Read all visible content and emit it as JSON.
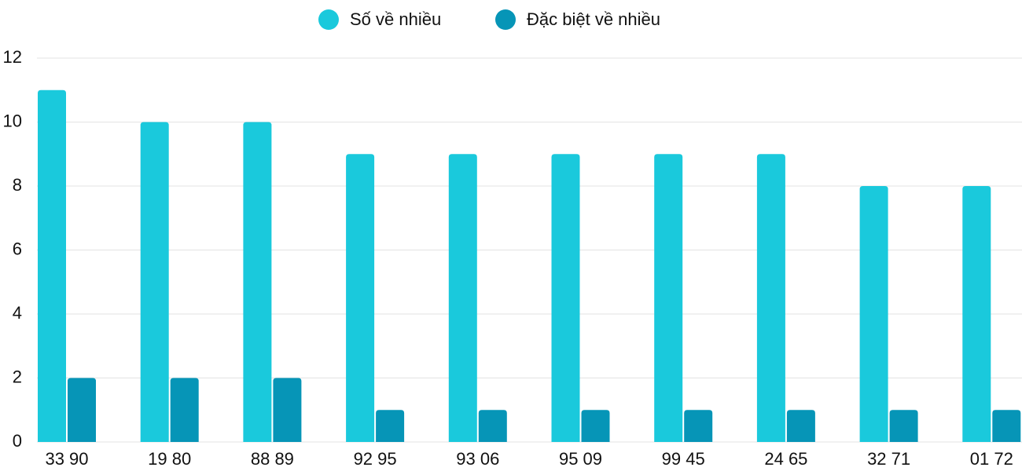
{
  "chart_data": {
    "type": "bar",
    "categories": [
      "33 90",
      "19 80",
      "88 89",
      "92 95",
      "93 06",
      "95 09",
      "99 45",
      "24 65",
      "32 71",
      "01 72"
    ],
    "series": [
      {
        "name": "Số về nhiều",
        "color": "#1ac9dc",
        "values": [
          11,
          10,
          10,
          9,
          9,
          9,
          9,
          9,
          8,
          8
        ]
      },
      {
        "name": "Đặc biệt về nhiều",
        "color": "#0695b7",
        "values": [
          2,
          2,
          2,
          1,
          1,
          1,
          1,
          1,
          1,
          1
        ]
      }
    ],
    "ylim": [
      0,
      12
    ],
    "yticks": [
      0,
      2,
      4,
      6,
      8,
      10,
      12
    ],
    "grid": true,
    "legend": "top"
  }
}
